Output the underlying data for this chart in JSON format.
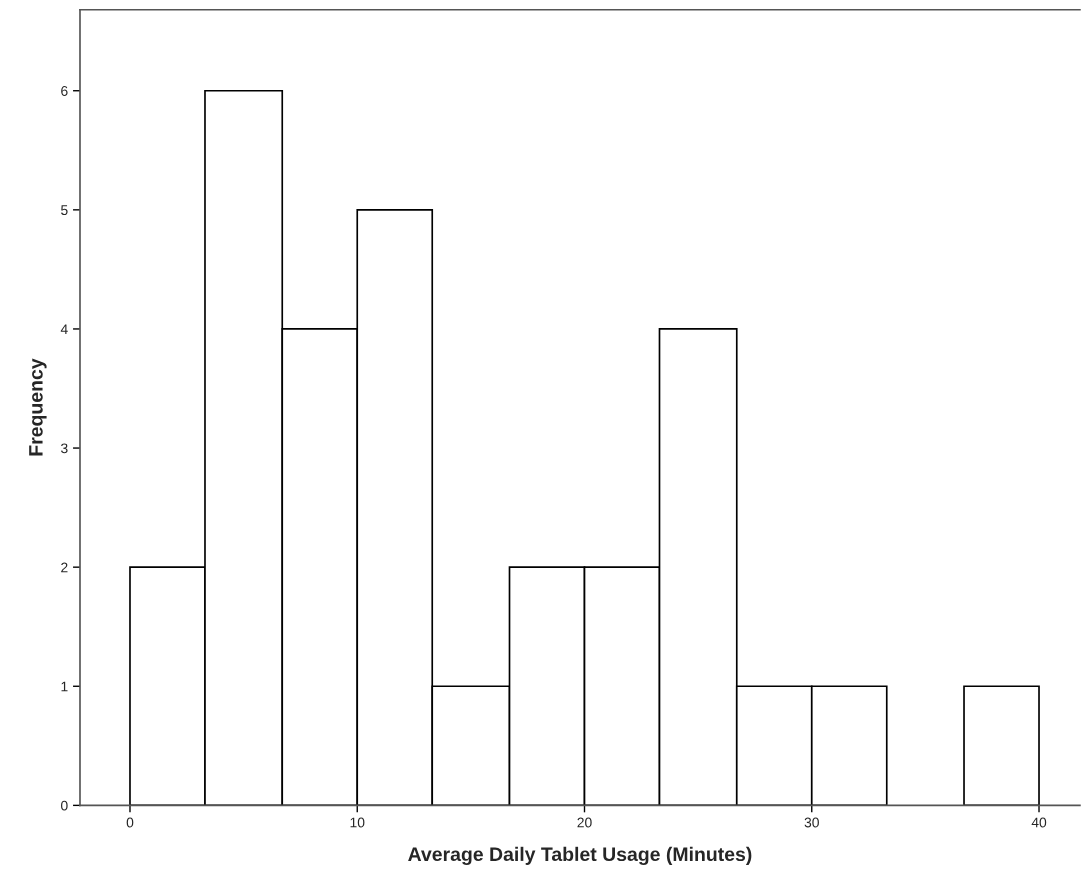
{
  "chart_data": {
    "type": "histogram",
    "xlabel": "Average Daily Tablet Usage (Minutes)",
    "ylabel": "Frequency",
    "bins": [
      0,
      3.3,
      6.7,
      10,
      13.3,
      16.7,
      20,
      23.3,
      26.7,
      30,
      33.3,
      36.7,
      40
    ],
    "values": [
      2,
      6,
      4,
      5,
      1,
      2,
      2,
      4,
      1,
      1,
      0,
      1
    ],
    "color": "#ffffff",
    "xlim": [
      -2.2,
      41.8
    ],
    "xticks": [
      0,
      10,
      20,
      30,
      40
    ],
    "ylim": [
      0,
      6.68
    ],
    "yticks": [
      0,
      1,
      2,
      3,
      4,
      5,
      6
    ],
    "grid": false,
    "legend": false
  }
}
